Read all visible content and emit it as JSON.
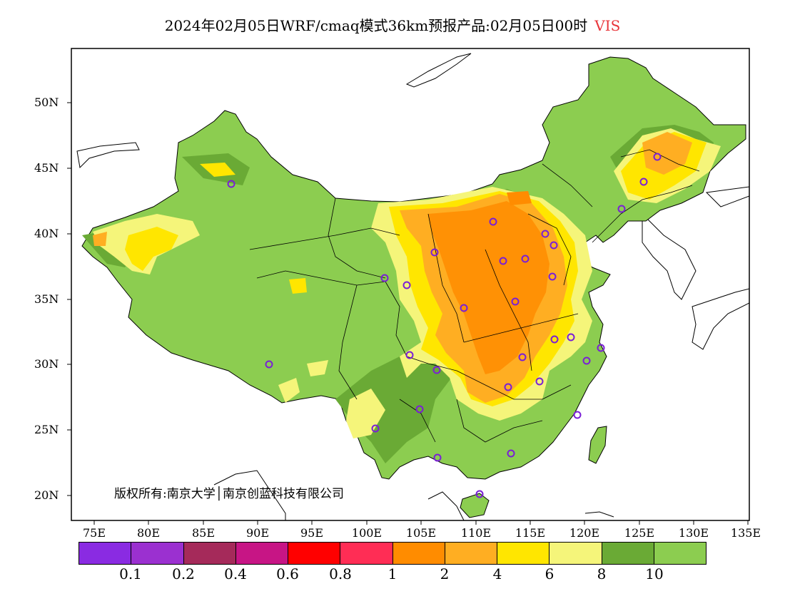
{
  "title": {
    "main": "2024年02月05日WRF/cmaq模式36km预报产品:02月05日00时",
    "variable": "VIS"
  },
  "axes": {
    "x_ticks": [
      "75E",
      "80E",
      "85E",
      "90E",
      "95E",
      "100E",
      "105E",
      "110E",
      "115E",
      "120E",
      "125E",
      "130E",
      "135E"
    ],
    "y_ticks": [
      "50N",
      "45N",
      "40N",
      "35N",
      "30N",
      "25N",
      "20N"
    ]
  },
  "legend": {
    "colors": [
      "#8a2be2",
      "#9b30d0",
      "#a52a5a",
      "#c71585",
      "#ff0000",
      "#ff2d55",
      "#ff8c00",
      "#ffae22",
      "#ffe600",
      "#f5f57a",
      "#6aaa35",
      "#8ccd50"
    ],
    "labels": [
      "0.1",
      "0.2",
      "0.4",
      "0.6",
      "0.8",
      "1",
      "2",
      "4",
      "6",
      "8",
      "10"
    ]
  },
  "copyright": "版权所有:南京大学│南京创蓝科技有限公司",
  "colors": {
    "background_land": "#8ccd50",
    "dark_green": "#6aaa35",
    "light_yellow": "#f5f57a",
    "yellow": "#ffe600",
    "orange": "#ffae22",
    "dark_orange": "#ff8c00",
    "station_marker": "#7a1fd6"
  }
}
